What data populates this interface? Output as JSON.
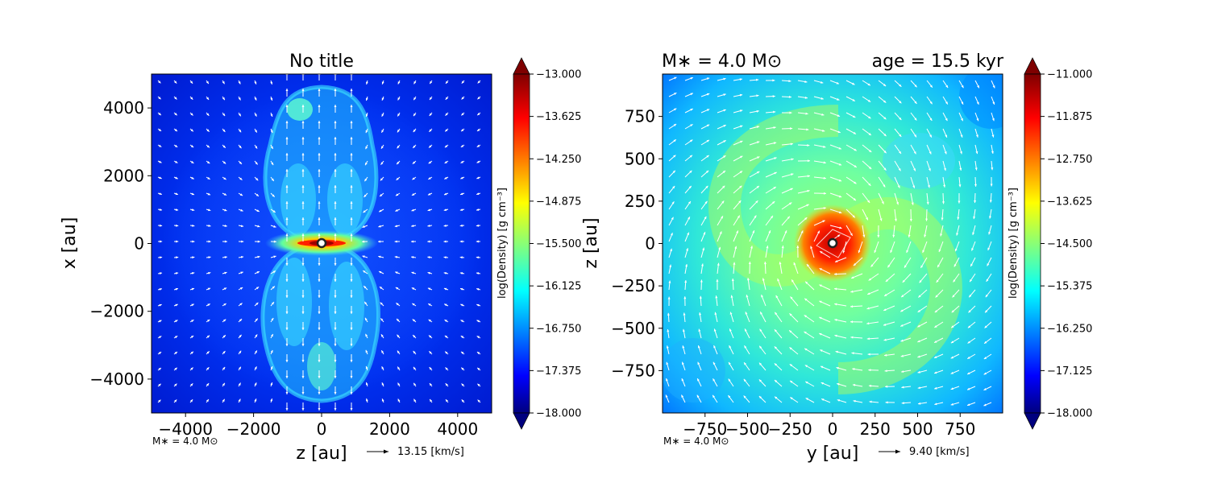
{
  "chart_data": [
    {
      "type": "heatmap",
      "title": "No title",
      "xlabel": "z [au]",
      "ylabel": "x [au]",
      "xlim": [
        -5000,
        5000
      ],
      "ylim": [
        -5000,
        5000
      ],
      "xticks": [
        "−4000",
        "−2000",
        "0",
        "2000",
        "4000"
      ],
      "xtick_values": [
        -4000,
        -2000,
        0,
        2000,
        4000
      ],
      "yticks": [
        "4000",
        "2000",
        "0",
        "−2000",
        "−4000"
      ],
      "ytick_values": [
        4000,
        2000,
        0,
        -2000,
        -4000
      ],
      "colorbar": {
        "label": "log(Density) [g cm⁻³]",
        "range": [
          -18.0,
          -13.0
        ],
        "ticks": [
          "−13.000",
          "−13.625",
          "−14.250",
          "−14.875",
          "−15.500",
          "−16.125",
          "−16.750",
          "−17.375",
          "−18.000"
        ]
      },
      "footer_mass": "M∗ = 4.0 M⊙",
      "velocity_key": "13.15 [km/s]",
      "grid": false
    },
    {
      "type": "heatmap",
      "title_left": "M∗ = 4.0 M⊙",
      "title_right": "age = 15.5 kyr",
      "xlabel": "y [au]",
      "ylabel": "z [au]",
      "xlim": [
        -1000,
        1000
      ],
      "ylim": [
        -1000,
        1000
      ],
      "xticks": [
        "−750",
        "−500",
        "−250",
        "0",
        "250",
        "500",
        "750"
      ],
      "xtick_values": [
        -750,
        -500,
        -250,
        0,
        250,
        500,
        750
      ],
      "yticks": [
        "750",
        "500",
        "250",
        "0",
        "−250",
        "−500",
        "−750"
      ],
      "ytick_values": [
        750,
        500,
        250,
        0,
        -250,
        -500,
        -750
      ],
      "colorbar": {
        "label": "log(Density) [g cm⁻³]",
        "range": [
          -18.0,
          -11.0
        ],
        "ticks": [
          "−11.000",
          "−11.875",
          "−12.750",
          "−13.625",
          "−14.500",
          "−15.375",
          "−16.250",
          "−17.125",
          "−18.000"
        ]
      },
      "footer_mass": "M∗ = 4.0 M⊙",
      "velocity_key": "9.40 [km/s]",
      "grid": false
    }
  ],
  "colors": {
    "jet_low": "#00007f",
    "jet_blue": "#0000ff",
    "jet_cyan": "#00ffff",
    "jet_yellow": "#ffff00",
    "jet_red": "#ff0000",
    "jet_high": "#7f0000"
  }
}
